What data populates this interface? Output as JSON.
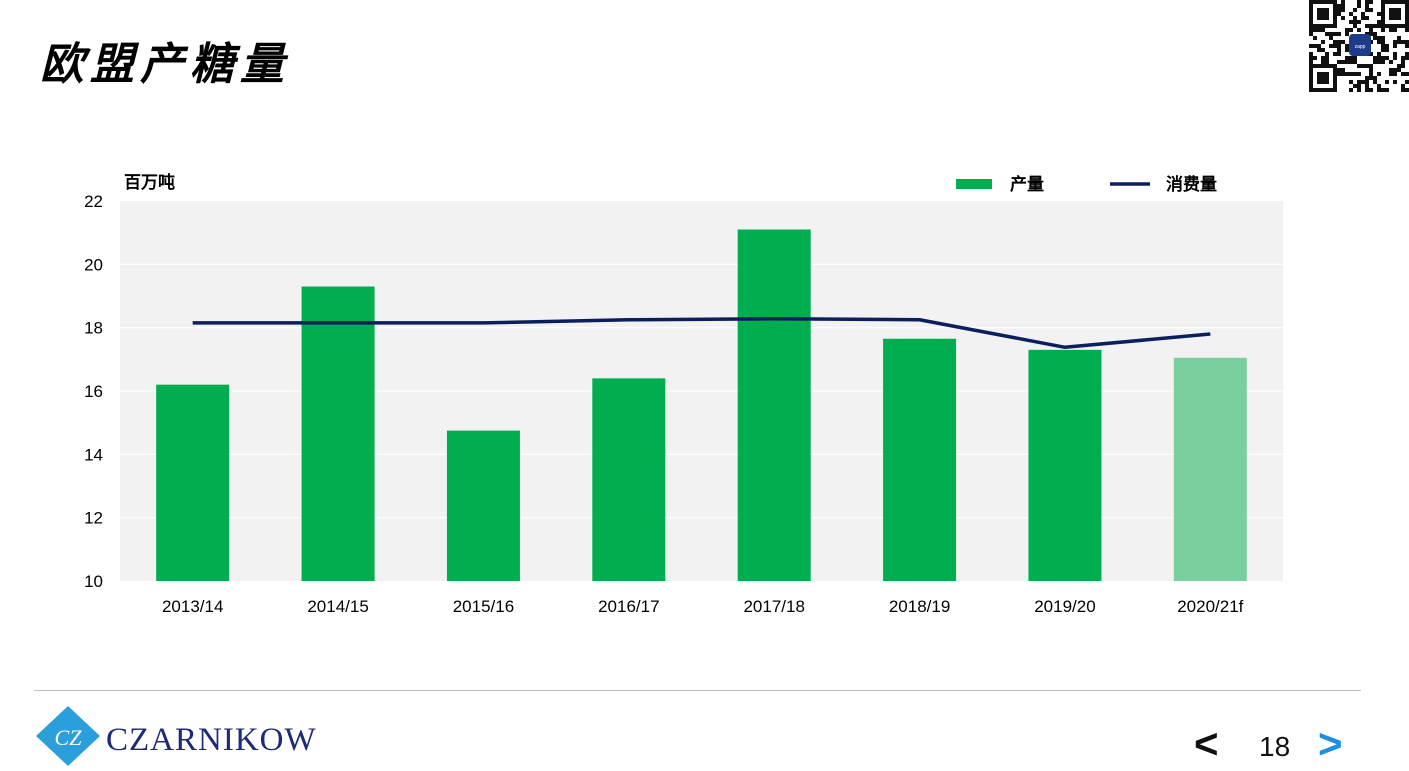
{
  "page": {
    "title": "欧盟产糖量",
    "page_number": "18",
    "prev_label": "<",
    "next_label": ">"
  },
  "logo": {
    "monogram": "CZ",
    "name": "CZARNIKOW"
  },
  "qr": {
    "center_text": "zapp"
  },
  "colors": {
    "production": "#00ae4f",
    "production_forecast": "#7acf9f",
    "consumption": "#0b1f5c",
    "plot_bg": "#f2f2f2",
    "logo": "#1e2a78",
    "logo_diamond": "#2a9fdc",
    "nav_next": "#1e90e0"
  },
  "chart_data": {
    "type": "bar",
    "unit_label": "百万吨",
    "categories": [
      "2013/14",
      "2014/15",
      "2015/16",
      "2016/17",
      "2017/18",
      "2018/19",
      "2019/20",
      "2020/21f"
    ],
    "series": [
      {
        "name": "产量",
        "type": "bar",
        "values": [
          16.2,
          19.3,
          14.75,
          16.4,
          21.1,
          17.65,
          17.3,
          17.05
        ],
        "forecast_index": 7
      },
      {
        "name": "消费量",
        "type": "line",
        "values": [
          18.15,
          18.15,
          18.15,
          18.25,
          18.28,
          18.25,
          17.38,
          17.8
        ]
      }
    ],
    "ylim": [
      10,
      22
    ],
    "yticks": [
      10,
      12,
      14,
      16,
      18,
      20,
      22
    ],
    "grid": true,
    "legend_position": "top-right"
  }
}
